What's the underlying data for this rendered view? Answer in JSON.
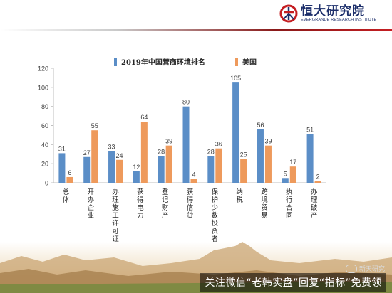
{
  "brand": {
    "name_cn": "恒大研究院",
    "name_en": "EVERGRANDE RESEARCH INSTITUTE",
    "color": "#c41e22",
    "navy": "#1d2f6b"
  },
  "watermark": {
    "text": "关注微信“老韩实盘”回复“指标”免费领",
    "chip": "新天研究"
  },
  "chart_data": {
    "type": "bar",
    "title": "",
    "categories": [
      "总体",
      "开办企业",
      "办理施工许可证",
      "获得电力",
      "登记财产",
      "获得信贷",
      "保护少数投资者",
      "纳税",
      "跨境贸易",
      "执行合同",
      "办理破产"
    ],
    "series": [
      {
        "name": "2019年中国营商环境排名",
        "values": [
          31,
          27,
          33,
          12,
          28,
          80,
          28,
          105,
          56,
          5,
          51
        ],
        "color": "#5b8ec7"
      },
      {
        "name": "美国",
        "values": [
          6,
          55,
          24,
          64,
          39,
          4,
          36,
          25,
          39,
          17,
          2
        ],
        "color": "#ee9a5c"
      }
    ],
    "ylim": [
      0,
      120
    ],
    "yticks": [
      0,
      20,
      40,
      60,
      80,
      100,
      120
    ],
    "xlabel": "",
    "ylabel": "",
    "grid": false,
    "legend": "top-center",
    "data_labels": true
  }
}
